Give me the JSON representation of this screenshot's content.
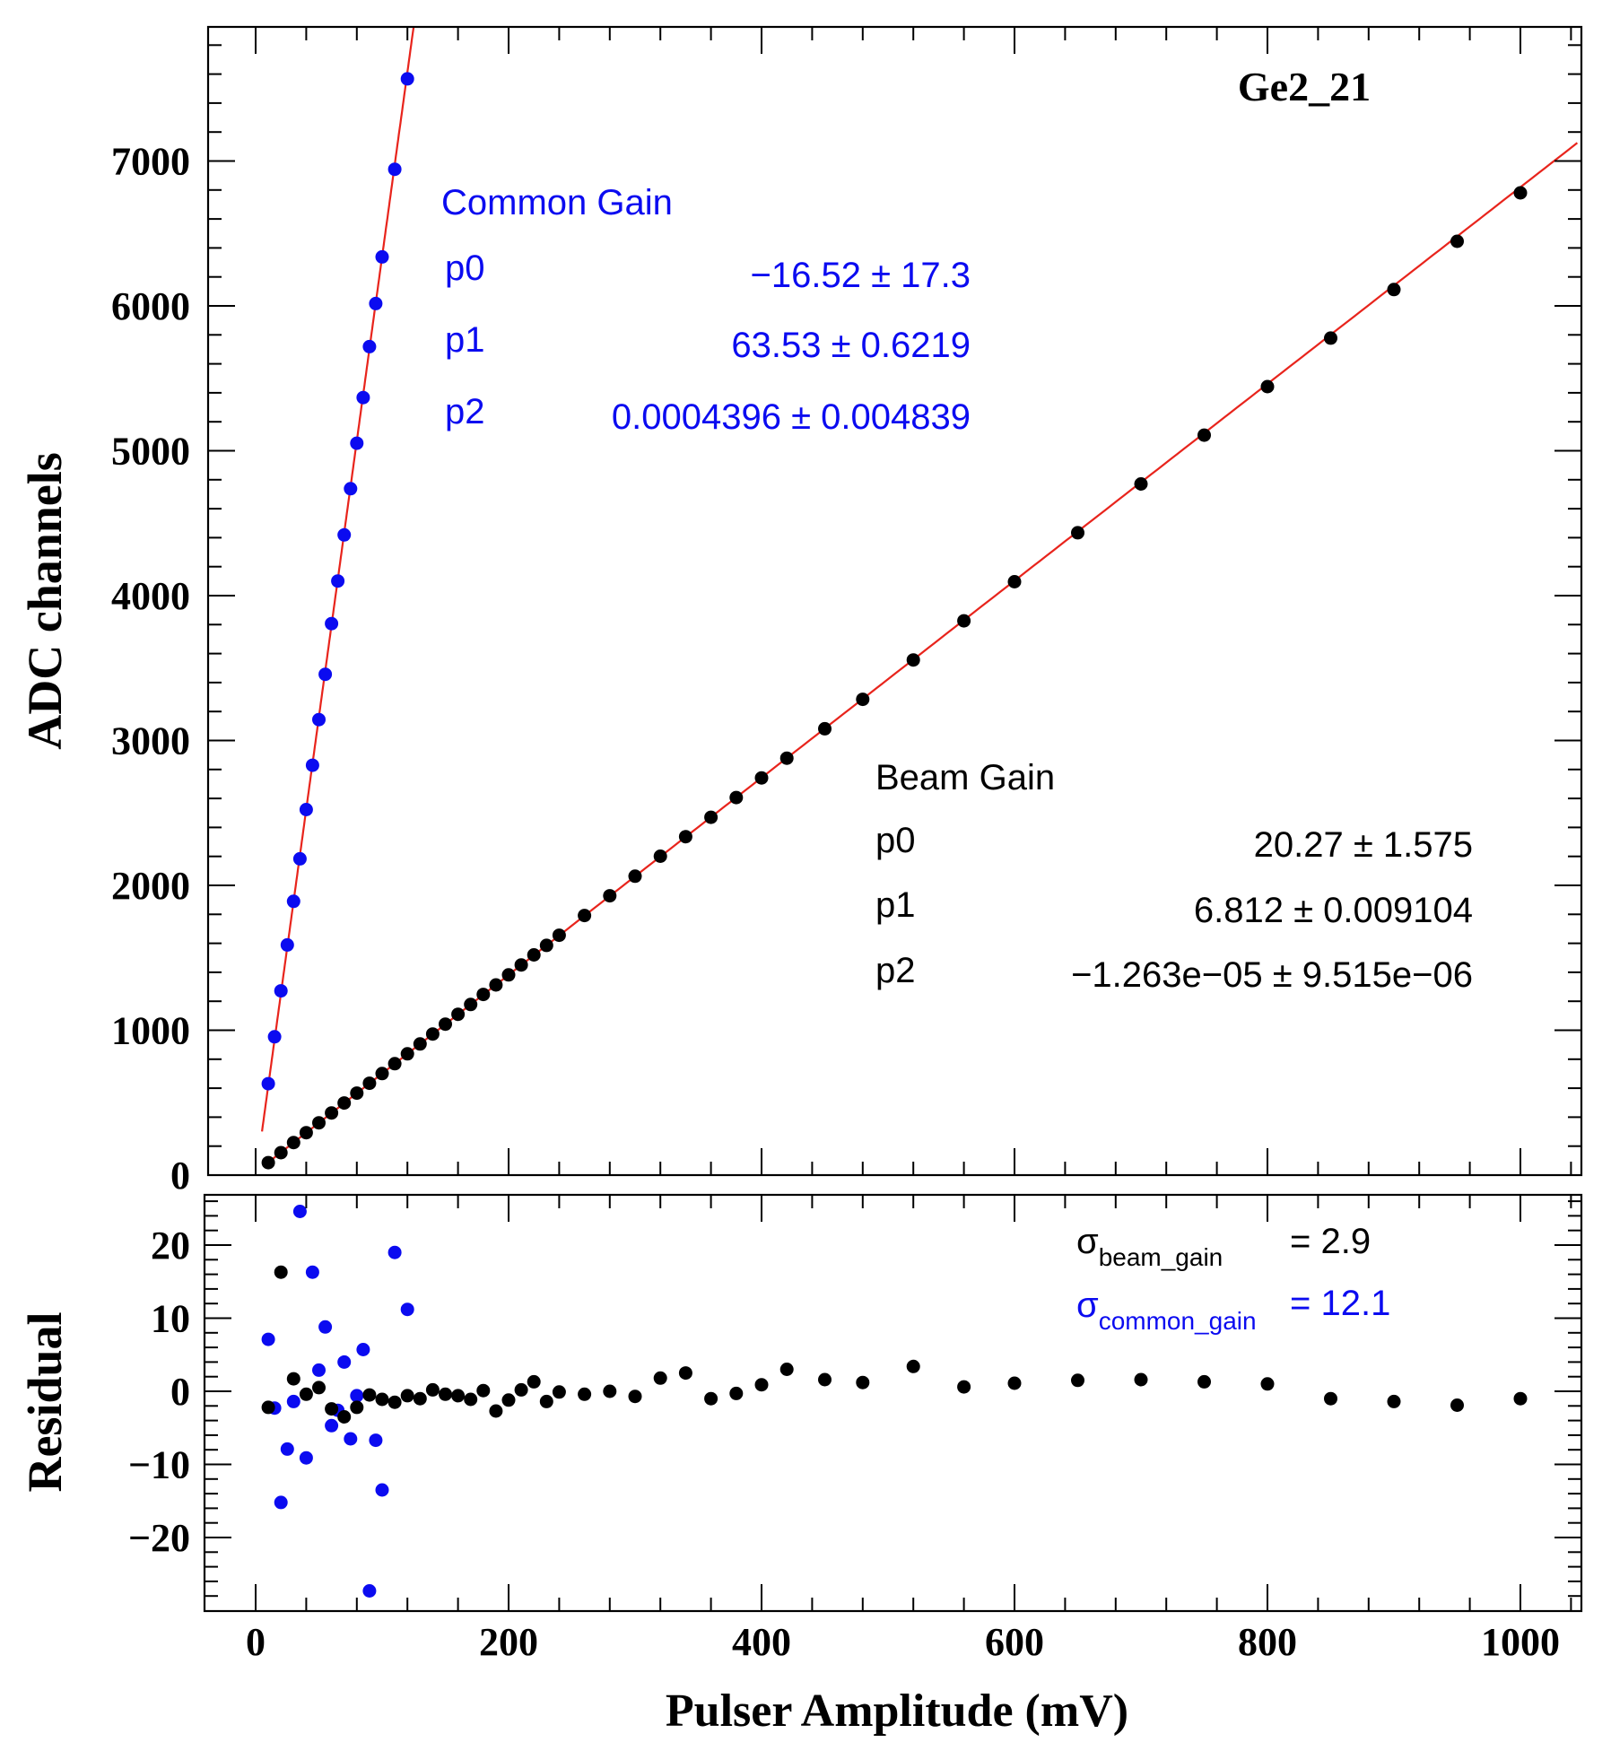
{
  "chart_data": [
    {
      "type": "scatter",
      "name": "calibration",
      "title": "Ge2_21",
      "xlabel": "Pulser Amplitude (mV)",
      "ylabel": "ADC channels",
      "xlim": [
        -40,
        1050
      ],
      "ylim": [
        0,
        7900
      ],
      "yticks": [
        0,
        1000,
        2000,
        3000,
        4000,
        5000,
        6000,
        7000
      ],
      "ytick_labels": [
        "0",
        "1000",
        "2000",
        "3000",
        "4000",
        "5000",
        "6000",
        "7000"
      ],
      "colors": {
        "common": "#0b0bf0",
        "beam": "#000000",
        "fit": "#e8241c"
      },
      "series": [
        {
          "name": "Common Gain",
          "color": "#0b0bf0",
          "x": [
            10,
            15,
            20,
            25,
            30,
            35,
            40,
            45,
            50,
            55,
            60,
            65,
            70,
            75,
            80,
            85,
            90,
            95,
            100,
            110,
            120
          ],
          "y": [
            631,
            955,
            1272,
            1589,
            1890,
            2183,
            2523,
            2829,
            3144,
            3457,
            3807,
            4101,
            4419,
            4738,
            5052,
            5367,
            5719,
            6016,
            6338,
            6943,
            7567
          ],
          "fit": {
            "p0": -16.52,
            "p1": 63.53,
            "p2": 0.0004396,
            "x_range": [
              5,
              126
            ]
          }
        },
        {
          "name": "Beam Gain",
          "color": "#000000",
          "x": [
            10,
            20,
            30,
            40,
            50,
            60,
            70,
            80,
            90,
            100,
            110,
            120,
            130,
            140,
            150,
            160,
            170,
            180,
            190,
            200,
            210,
            220,
            230,
            240,
            260,
            280,
            300,
            320,
            340,
            360,
            380,
            400,
            420,
            450,
            480,
            520,
            560,
            600,
            650,
            700,
            750,
            800,
            850,
            900,
            950,
            1000
          ],
          "y": [
            86,
            155,
            225,
            293,
            361,
            429,
            498,
            566,
            634,
            701,
            769,
            837,
            905,
            974,
            1042,
            1110,
            1178,
            1247,
            1313,
            1382,
            1451,
            1520,
            1586,
            1656,
            1792,
            1928,
            2063,
            2201,
            2336,
            2470,
            2606,
            2742,
            2878,
            3081,
            3284,
            3556,
            3826,
            4096,
            4434,
            4771,
            5108,
            5443,
            5778,
            6113,
            6446,
            6780
          ],
          "fit": {
            "p0": 20.27,
            "p1": 6.812,
            "p2": -1.263e-05,
            "x_range": [
              8,
              1045
            ]
          }
        }
      ],
      "stats": {
        "common": {
          "header": "Common Gain",
          "rows": [
            {
              "name": "p0",
              "value": "−16.52 ±  17.3"
            },
            {
              "name": "p1",
              "value": "63.53 ± 0.6219"
            },
            {
              "name": "p2",
              "value": "0.0004396 ± 0.004839"
            }
          ]
        },
        "beam": {
          "header": "Beam Gain",
          "rows": [
            {
              "name": "p0",
              "value": "20.27 ± 1.575"
            },
            {
              "name": "p1",
              "value": "6.812 ± 0.009104"
            },
            {
              "name": "p2",
              "value": "−1.263e−05 ± 9.515e−06"
            }
          ]
        }
      }
    },
    {
      "type": "scatter",
      "name": "residuals",
      "xlabel": "Pulser Amplitude (mV)",
      "ylabel": "Residual",
      "xlim": [
        -40,
        1050
      ],
      "ylim": [
        -29,
        27
      ],
      "xticks": [
        0,
        200,
        400,
        600,
        800,
        1000
      ],
      "xtick_labels": [
        "0",
        "200",
        "400",
        "600",
        "800",
        "1000"
      ],
      "yticks": [
        -20,
        -10,
        0,
        10,
        20
      ],
      "ytick_labels": [
        "−20",
        "−10",
        "0",
        "10",
        "20"
      ],
      "series": [
        {
          "name": "Common Gain residual",
          "color": "#0b0bf0",
          "x": [
            10,
            15,
            20,
            25,
            30,
            35,
            40,
            45,
            50,
            55,
            60,
            65,
            70,
            75,
            80,
            85,
            90,
            95,
            100,
            110,
            120
          ],
          "y": [
            7.1,
            -2.3,
            -15.2,
            -7.9,
            -1.4,
            24.6,
            -9.1,
            16.3,
            2.9,
            8.8,
            -4.7,
            -2.6,
            4.0,
            -6.5,
            -0.6,
            5.7,
            -27.3,
            -6.7,
            -13.5,
            19.0,
            11.2
          ]
        },
        {
          "name": "Beam Gain residual",
          "color": "#000000",
          "x": [
            10,
            20,
            30,
            40,
            50,
            60,
            70,
            80,
            90,
            100,
            110,
            120,
            130,
            140,
            150,
            160,
            170,
            180,
            190,
            200,
            210,
            220,
            230,
            240,
            260,
            280,
            300,
            320,
            340,
            360,
            380,
            400,
            420,
            450,
            480,
            520,
            560,
            600,
            650,
            700,
            750,
            800,
            850,
            900,
            950,
            1000
          ],
          "y": [
            -2.2,
            16.3,
            1.7,
            -0.4,
            0.5,
            -2.4,
            -3.5,
            -2.2,
            -0.5,
            -1.1,
            -1.5,
            -0.6,
            -1.0,
            0.2,
            -0.4,
            -0.6,
            -1.1,
            0.1,
            -2.7,
            -1.2,
            0.2,
            1.3,
            -1.4,
            -0.1,
            -0.4,
            0.0,
            -0.7,
            1.8,
            2.5,
            -1.0,
            -0.3,
            0.9,
            3.0,
            1.6,
            1.2,
            3.4,
            0.6,
            1.1,
            1.5,
            1.6,
            1.3,
            1.0,
            -1.0,
            -1.4,
            -1.9,
            -1.0
          ]
        }
      ],
      "sigma": {
        "beam": {
          "symbol": "σ",
          "sub": "beam_gain",
          "value": "= 2.9"
        },
        "common": {
          "symbol": "σ",
          "sub": "common_gain",
          "value": "= 12.1"
        }
      }
    }
  ]
}
